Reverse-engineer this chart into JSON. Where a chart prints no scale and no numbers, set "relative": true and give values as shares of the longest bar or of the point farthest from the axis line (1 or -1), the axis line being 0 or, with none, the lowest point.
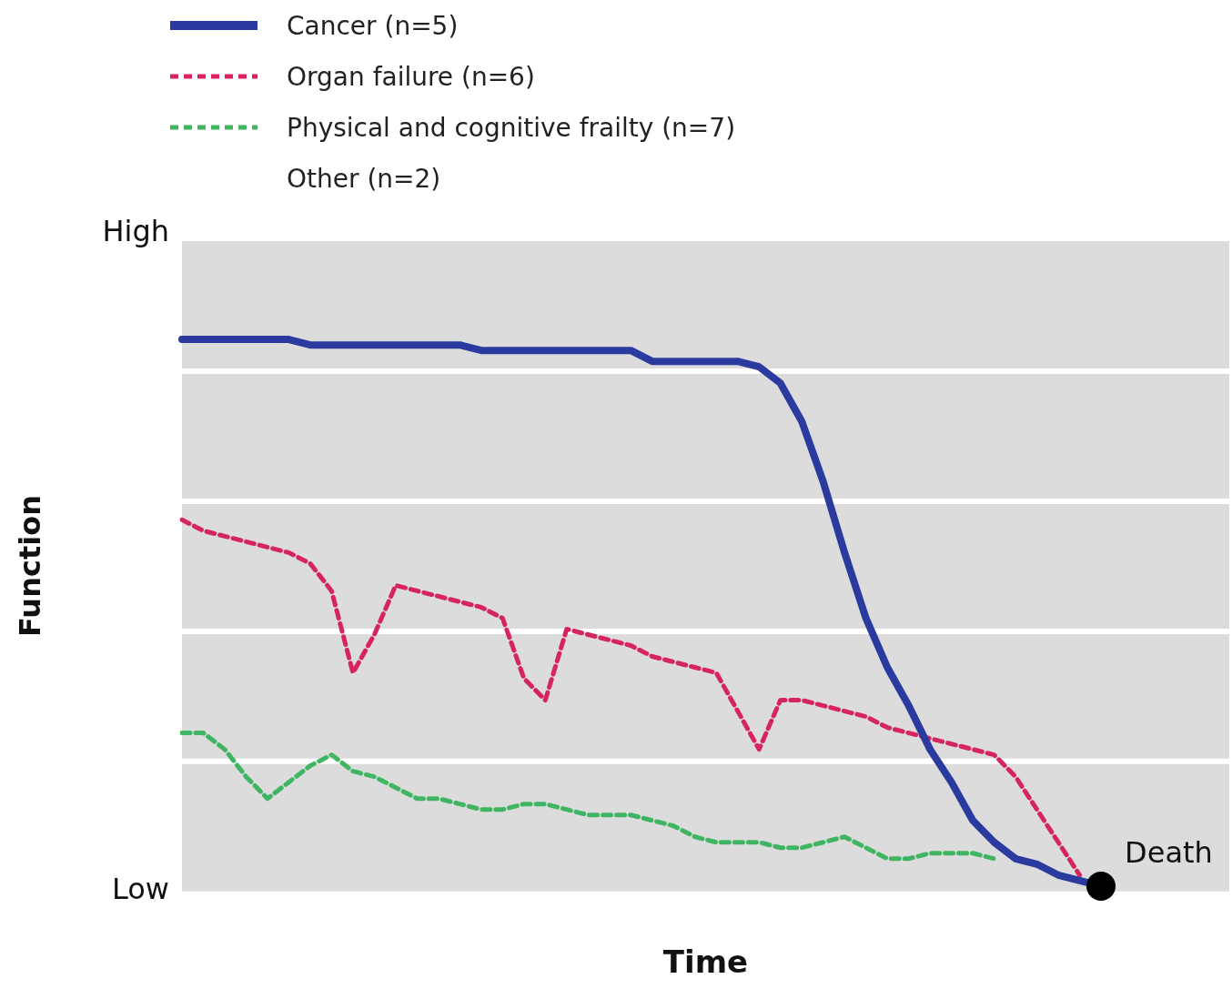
{
  "chart_data": {
    "type": "line",
    "xlabel": "Time",
    "ylabel": "Function",
    "relative": true,
    "categories": [
      null,
      null,
      null,
      null,
      null,
      null,
      null,
      null,
      null,
      null,
      null,
      null,
      null,
      null,
      null,
      null,
      null,
      null,
      null,
      null,
      null,
      null,
      null,
      null,
      null,
      null,
      null,
      null,
      null,
      null,
      null,
      null,
      null,
      null,
      null,
      null,
      null,
      null,
      null,
      null,
      null,
      null,
      null,
      null,
      null,
      null,
      null,
      null,
      null,
      null
    ],
    "grid": "y",
    "legend": "top left",
    "marker": "none",
    "series": [
      {
        "name": "Cancer (n=5)",
        "color": "#2b3a9e",
        "line_style": "solid",
        "values": [
          1,
          1,
          1,
          1,
          1,
          1,
          0.99,
          0.99,
          0.99,
          0.99,
          0.99,
          0.99,
          0.99,
          0.99,
          0.98,
          0.98,
          0.98,
          0.98,
          0.98,
          0.98,
          0.98,
          0.98,
          0.96,
          0.96,
          0.96,
          0.96,
          0.96,
          0.95,
          0.92,
          0.85,
          0.74,
          0.61,
          0.49,
          0.4,
          0.33,
          0.25,
          0.19,
          0.12,
          0.08,
          0.05,
          0.04,
          0.02,
          0.01,
          0,
          null,
          null,
          null,
          null,
          null,
          null
        ]
      },
      {
        "name": "Organ failure (n=6)",
        "color": "#d6245e",
        "line_style": "dashed",
        "values": [
          0.67,
          0.65,
          0.64,
          0.63,
          0.62,
          0.61,
          0.59,
          0.54,
          0.39,
          0.46,
          0.55,
          0.54,
          0.53,
          0.52,
          0.51,
          0.49,
          0.38,
          0.34,
          0.47,
          0.46,
          0.45,
          0.44,
          0.42,
          0.41,
          0.4,
          0.39,
          0.32,
          0.25,
          0.34,
          0.34,
          0.33,
          0.32,
          0.31,
          0.29,
          0.28,
          0.27,
          0.26,
          0.25,
          0.24,
          0.2,
          0.14,
          0.08,
          0.02,
          null,
          null,
          null,
          null,
          null,
          null,
          null
        ]
      },
      {
        "name": "Physical and cognitive frailty (n=7)",
        "color": "#3fb562",
        "line_style": "dashed",
        "values": [
          0.28,
          0.28,
          0.25,
          0.2,
          0.16,
          0.19,
          0.22,
          0.24,
          0.21,
          0.2,
          0.18,
          0.16,
          0.16,
          0.15,
          0.14,
          0.14,
          0.15,
          0.15,
          0.14,
          0.13,
          0.13,
          0.13,
          0.12,
          0.11,
          0.09,
          0.08,
          0.08,
          0.08,
          0.07,
          0.07,
          0.08,
          0.09,
          0.07,
          0.05,
          0.05,
          0.06,
          0.06,
          0.06,
          0.05,
          null,
          null,
          null,
          null,
          null,
          null,
          null,
          null,
          null,
          null,
          null
        ]
      }
    ],
    "annotations": [
      "High",
      "Low",
      "Other (n=2)",
      "Death"
    ]
  }
}
